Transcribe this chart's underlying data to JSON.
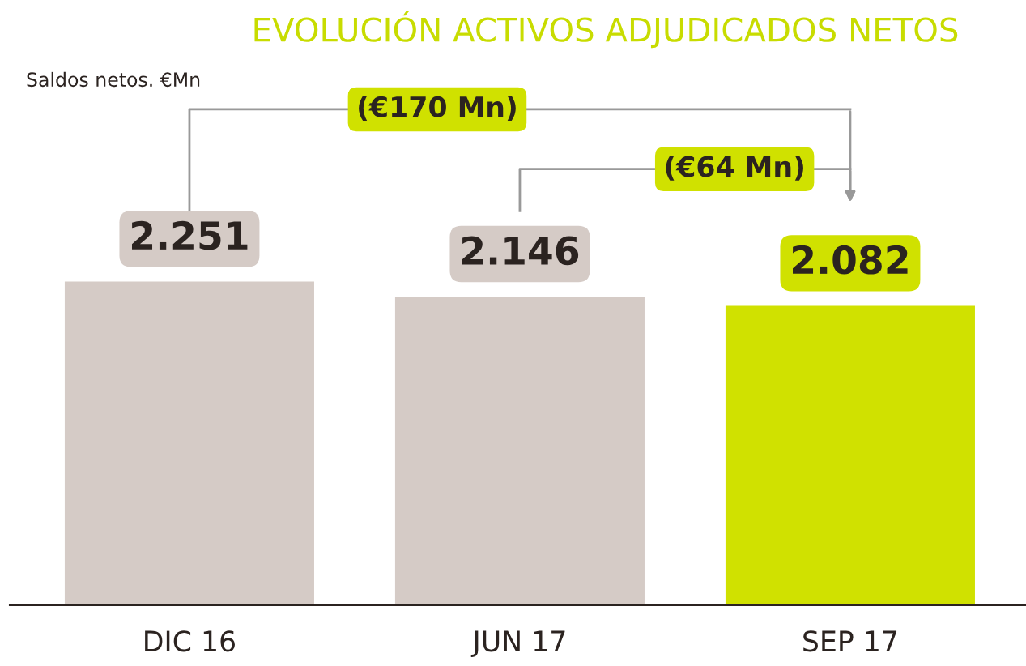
{
  "chart_data": {
    "type": "bar",
    "title": "EVOLUCIÓN ACTIVOS ADJUDICADOS NETOS",
    "subtitle": "Saldos netos. €Mn",
    "categories": [
      "DIC 16",
      "JUN 17",
      "SEP 17"
    ],
    "values": [
      2251,
      2146,
      2082
    ],
    "colors": [
      "#d5cbc6",
      "#d5cbc6",
      "#d0e100"
    ],
    "value_labels": [
      "2.251",
      "2.146",
      "2.082"
    ],
    "tick_labels": "x",
    "grid": false,
    "legend": false,
    "annotations": [
      "(€170 Mn)",
      "(€64 Mn)"
    ]
  }
}
